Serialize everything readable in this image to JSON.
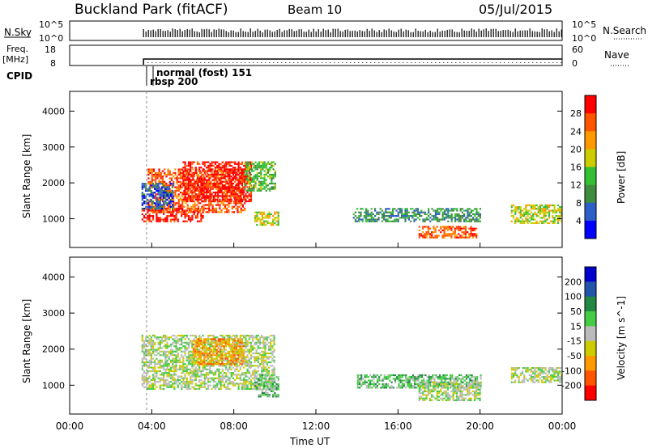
{
  "header": {
    "site": "Buckland Park (fitACF)",
    "beam": "Beam 10",
    "date": "05/Jul/2015"
  },
  "panels": {
    "nsky": {
      "label": "N.Sky",
      "right_label": "N.Search",
      "ticks_left": [
        "10^5",
        "10^0"
      ],
      "ticks_right": [
        "10^5",
        "10^0"
      ]
    },
    "freq": {
      "label_line1": "Freq.",
      "label_line2": "[MHz]",
      "right_label": "Nave",
      "ticks_left": [
        "18",
        "8"
      ],
      "ticks_right": [
        "60",
        "0"
      ]
    },
    "cpid": {
      "label": "CPID",
      "mode1": "normal (fost) 151",
      "mode2": "rbsp 200"
    }
  },
  "colors": {
    "power": [
      "#0000ff",
      "#2d5fc8",
      "#3f8c3f",
      "#33c133",
      "#cccc00",
      "#ff9900",
      "#ff5500",
      "#ff0000"
    ],
    "velocity": [
      "#0000cc",
      "#2255aa",
      "#228844",
      "#44cc44",
      "#bbbbbb",
      "#cccc00",
      "#ff9900",
      "#ff5500",
      "#ff0000"
    ],
    "velocity_slab": "#bfbfbf"
  },
  "chart_data": [
    {
      "type": "heatmap",
      "name": "power",
      "xlabel": "",
      "ylabel": "Slant Range [km]",
      "yticks": [
        1000,
        2000,
        3000,
        4000
      ],
      "ylim": [
        200,
        4550
      ],
      "colorbar": {
        "label": "Power [dB]",
        "ticks": [
          4,
          8,
          12,
          16,
          20,
          24,
          28
        ]
      },
      "regions": [
        {
          "t": [
            3.5,
            6.5
          ],
          "r": [
            950,
            1300
          ],
          "level": 7
        },
        {
          "t": [
            3.8,
            8.5
          ],
          "r": [
            1200,
            2400
          ],
          "level": 6
        },
        {
          "t": [
            5.5,
            8.8
          ],
          "r": [
            1500,
            2600
          ],
          "level": 7
        },
        {
          "t": [
            3.5,
            5.0
          ],
          "r": [
            1300,
            2000
          ],
          "level": 1
        },
        {
          "t": [
            8.5,
            10.0
          ],
          "r": [
            1800,
            2600
          ],
          "level": 3
        },
        {
          "t": [
            9.0,
            10.2
          ],
          "r": [
            850,
            1200
          ],
          "level": 4
        },
        {
          "t": [
            13.8,
            20.0
          ],
          "r": [
            950,
            1300
          ],
          "level": 2
        },
        {
          "t": [
            17.0,
            19.8
          ],
          "r": [
            500,
            800
          ],
          "level": 6
        },
        {
          "t": [
            21.5,
            24.0
          ],
          "r": [
            900,
            1400
          ],
          "level": 4
        }
      ]
    },
    {
      "type": "heatmap",
      "name": "velocity",
      "xlabel": "Time UT",
      "ylabel": "Slant Range [km]",
      "xticks": [
        "00:00",
        "04:00",
        "08:00",
        "12:00",
        "16:00",
        "20:00",
        "00:00"
      ],
      "yticks": [
        1000,
        2000,
        3000,
        4000
      ],
      "ylim": [
        200,
        4550
      ],
      "colorbar": {
        "label": "Velocity [m s^-1]",
        "ticks": [
          200,
          100,
          50,
          15,
          -15,
          -50,
          -100,
          -200
        ]
      },
      "regions": [
        {
          "t": [
            3.5,
            10.0
          ],
          "r": [
            900,
            2400
          ],
          "level": 4
        },
        {
          "t": [
            6.0,
            8.5
          ],
          "r": [
            1600,
            2300
          ],
          "level": 6
        },
        {
          "t": [
            9.0,
            10.2
          ],
          "r": [
            700,
            1300
          ],
          "level": 3
        },
        {
          "t": [
            14.0,
            20.0
          ],
          "r": [
            950,
            1300
          ],
          "level": 3
        },
        {
          "t": [
            17.0,
            20.0
          ],
          "r": [
            600,
            1100
          ],
          "level": 4
        },
        {
          "t": [
            21.5,
            24.0
          ],
          "r": [
            1100,
            1500
          ],
          "level": 4
        }
      ]
    }
  ]
}
